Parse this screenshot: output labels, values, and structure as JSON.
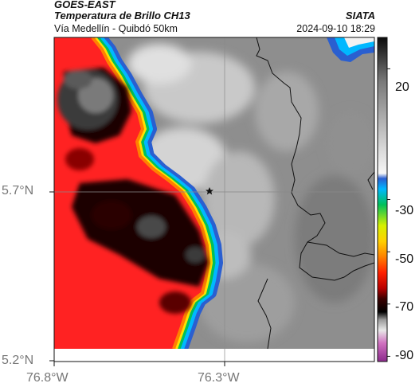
{
  "header": {
    "product": "GOES-EAST",
    "title": "Temperatura de Brillo CH13",
    "region": "Vía Medellín - Quibdó 50km",
    "brand": "SIATA",
    "datetime": "2024-09-10 18:29"
  },
  "axes": {
    "lon_labels": [
      "76.8°W",
      "76.3°W"
    ],
    "lat_labels": [
      "5.7°N",
      "5.2°N"
    ]
  },
  "colorbar": {
    "ticks": [
      "20",
      "-30",
      "-50",
      "-70",
      "-90"
    ],
    "stops": [
      {
        "v": 32,
        "c": "#0b0b0b"
      },
      {
        "v": 15,
        "c": "#7a7a7a"
      },
      {
        "v": -10,
        "c": "#d6d6d6"
      },
      {
        "v": -20,
        "c": "#f6f6f6"
      },
      {
        "v": -22,
        "c": "#2a5fd0"
      },
      {
        "v": -26,
        "c": "#00b8ff"
      },
      {
        "v": -32,
        "c": "#00c05a"
      },
      {
        "v": -40,
        "c": "#d6f000"
      },
      {
        "v": -46,
        "c": "#ffd000"
      },
      {
        "v": -52,
        "c": "#ff8000"
      },
      {
        "v": -58,
        "c": "#ff2000"
      },
      {
        "v": -64,
        "c": "#b80000"
      },
      {
        "v": -68,
        "c": "#3a0000"
      },
      {
        "v": -73,
        "c": "#000000"
      },
      {
        "v": -76,
        "c": "#9a9a9a"
      },
      {
        "v": -80,
        "c": "#e8e8e8"
      },
      {
        "v": -85,
        "c": "#d070c0"
      },
      {
        "v": -92,
        "c": "#8c2a8c"
      }
    ]
  },
  "colors": {
    "cold_red": "#ff2222",
    "cold_dark": "#1a0000",
    "warm_gray": "#8a8a8a",
    "border": "#111111"
  }
}
